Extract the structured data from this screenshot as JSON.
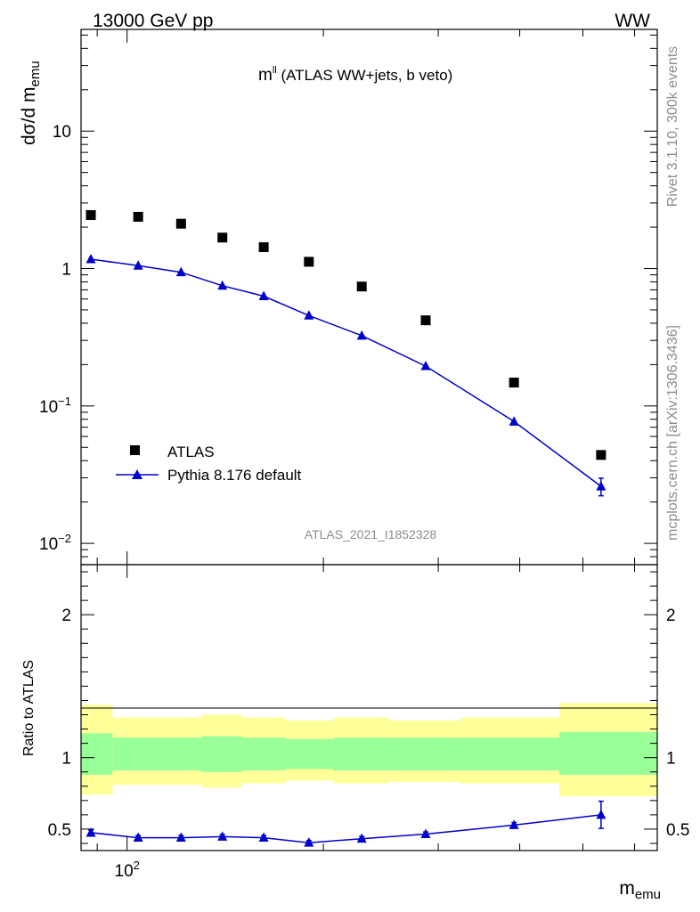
{
  "header": {
    "left": "13000 GeV pp",
    "right": "WW",
    "side_top": "Rivet 3.1.10,  300k events",
    "side_bottom": "mcplots.cern.ch [arXiv:1306.3436]",
    "analysis_id": "ATLAS_2021_I1852328"
  },
  "chart_data": [
    {
      "type": "scatter",
      "title_main": "m",
      "title_sup": "ll",
      "title_rest": " (ATLAS WW+jets, b veto)",
      "ylabel_main": "dσ/d m",
      "ylabel_sub": "emu",
      "yscale": "log",
      "ylim": [
        0.007,
        55
      ],
      "xscale": "log",
      "xlim": [
        85,
        650
      ],
      "y_tick_labels": [
        {
          "value": 10,
          "base": "10",
          "exp": ""
        },
        {
          "value": 1,
          "base": "1",
          "exp": ""
        },
        {
          "value": 0.1,
          "base": "10",
          "exp": "−1"
        },
        {
          "value": 0.01,
          "base": "10",
          "exp": "−2"
        }
      ],
      "legend_position": "bottom-left",
      "series": [
        {
          "name": "ATLAS",
          "marker": "square",
          "color": "#000000",
          "x": [
            88,
            104,
            121,
            140,
            162,
            190,
            229,
            287,
            392,
            533
          ],
          "y": [
            2.45,
            2.38,
            2.12,
            1.68,
            1.43,
            1.12,
            0.74,
            0.42,
            0.148,
            0.044
          ]
        },
        {
          "name": "Pythia 8.176 default",
          "marker": "triangle",
          "color": "#0000cc",
          "x": [
            88,
            104,
            121,
            140,
            162,
            190,
            229,
            287,
            392,
            533
          ],
          "y": [
            1.17,
            1.05,
            0.94,
            0.75,
            0.63,
            0.455,
            0.325,
            0.195,
            0.077,
            0.026
          ],
          "yerr": [
            0,
            0,
            0,
            0,
            0,
            0,
            0,
            0,
            0,
            0.0038
          ]
        }
      ]
    },
    {
      "type": "line",
      "ylabel": "Ratio to ATLAS",
      "ylim": [
        0.35,
        2.35
      ],
      "xlim": [
        85,
        650
      ],
      "xlabel_main": "m",
      "xlabel_sub": "emu",
      "x_tick_label": {
        "value": 100,
        "base": "10",
        "exp": "2"
      },
      "y_tick_labels": [
        "0.5",
        "1",
        "2"
      ],
      "y_tick_values": [
        0.5,
        1,
        2
      ],
      "reference_line": 1,
      "bands": {
        "bin_edges": [
          85,
          95,
          113,
          130,
          150,
          175,
          207,
          252,
          325,
          460,
          650
        ],
        "outer_color": "#ffff99",
        "inner_color": "#99ff99",
        "outer_low": [
          0.74,
          0.81,
          0.81,
          0.79,
          0.82,
          0.84,
          0.82,
          0.83,
          0.82,
          0.73
        ],
        "outer_high": [
          1.37,
          1.28,
          1.28,
          1.3,
          1.28,
          1.26,
          1.28,
          1.26,
          1.28,
          1.38
        ],
        "inner_low": [
          0.88,
          0.91,
          0.91,
          0.9,
          0.91,
          0.92,
          0.91,
          0.91,
          0.91,
          0.88
        ],
        "inner_high": [
          1.17,
          1.14,
          1.14,
          1.15,
          1.14,
          1.13,
          1.14,
          1.14,
          1.14,
          1.18
        ]
      },
      "series": [
        {
          "name": "Pythia 8.176 default",
          "color": "#0000cc",
          "x": [
            88,
            104,
            121,
            140,
            162,
            190,
            229,
            287,
            392,
            533
          ],
          "y": [
            0.475,
            0.44,
            0.44,
            0.447,
            0.44,
            0.405,
            0.433,
            0.465,
            0.528,
            0.6
          ],
          "yerr": [
            0.018,
            0.015,
            0.015,
            0.015,
            0.015,
            0.015,
            0.015,
            0.015,
            0.018,
            0.095
          ]
        }
      ]
    }
  ]
}
